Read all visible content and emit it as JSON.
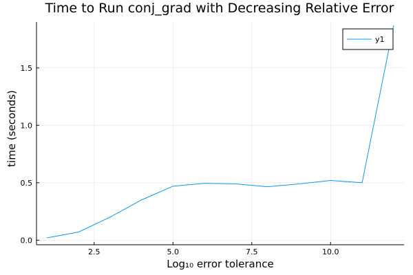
{
  "chart_data": {
    "type": "line",
    "title": "Time to Run conj_grad with Decreasing Relative Error",
    "xlabel": "Log₁₀ error tolerance",
    "ylabel": "time (seconds)",
    "xlim": [
      0.67,
      12.33
    ],
    "ylim": [
      -0.04,
      1.9
    ],
    "x_ticks": [
      2.5,
      5.0,
      7.5,
      10.0
    ],
    "x_tick_labels": [
      "2.5",
      "5.0",
      "7.5",
      "10.0"
    ],
    "y_ticks": [
      0.0,
      0.5,
      1.0,
      1.5
    ],
    "y_tick_labels": [
      "0.0",
      "0.5",
      "1.0",
      "1.5"
    ],
    "grid": true,
    "legend_position": "top-right",
    "series": [
      {
        "name": "y1",
        "color": "#009af9",
        "x": [
          1,
          2,
          3,
          4,
          5,
          6,
          7,
          8,
          9,
          10,
          11,
          12
        ],
        "y": [
          0.02,
          0.07,
          0.2,
          0.35,
          0.47,
          0.495,
          0.49,
          0.465,
          0.49,
          0.52,
          0.5,
          1.87
        ]
      }
    ]
  }
}
